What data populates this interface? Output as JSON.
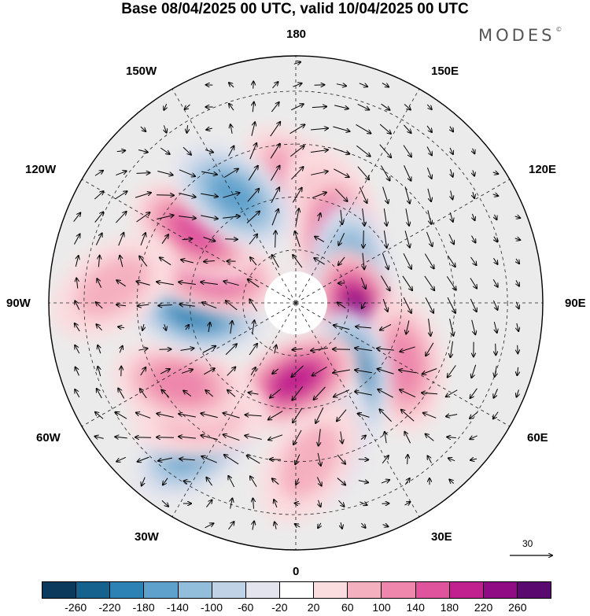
{
  "title": "Base 08/04/2025 00 UTC, valid 10/04/2025 00 UTC",
  "brand": "MODES",
  "brand_mark": "©",
  "longitude_labels": {
    "top": "180",
    "bottom": "0",
    "left": "90W",
    "right": "90E",
    "nw_top": "150W",
    "nw_side": "120W",
    "ne_top": "150E",
    "ne_side": "120E",
    "sw_side": "60W",
    "sw_bottom": "30W",
    "se_side": "60E",
    "se_bottom": "30E"
  },
  "reference_vector_label": "30",
  "colorbar": {
    "colors": [
      "#0b3a5c",
      "#16628f",
      "#2c82b5",
      "#5ea1cc",
      "#92bddb",
      "#c0d2e6",
      "#e4e4ef",
      "#ffffff",
      "#fbdcdf",
      "#f5b0c0",
      "#ee87ab",
      "#e0549d",
      "#c1218e",
      "#8f0c84",
      "#5a0a6e"
    ],
    "tick_labels": [
      "-260",
      "-220",
      "-180",
      "-140",
      "-100",
      "-60",
      "-20",
      "20",
      "60",
      "100",
      "140",
      "180",
      "220",
      "260"
    ]
  },
  "anomaly_centers": [
    {
      "lon": 180,
      "lat": 57,
      "value": 120
    },
    {
      "lon": 160,
      "lat": 62,
      "value": 80
    },
    {
      "lon": 150,
      "lat": 68,
      "value": 150
    },
    {
      "lon": 120,
      "lat": 72,
      "value": -140
    },
    {
      "lon": 80,
      "lat": 72,
      "value": 250
    },
    {
      "lon": 60,
      "lat": 55,
      "value": 130
    },
    {
      "lon": 35,
      "lat": 64,
      "value": -220
    },
    {
      "lon": 15,
      "lat": 52,
      "value": -80
    },
    {
      "lon": 5,
      "lat": 45,
      "value": 60
    },
    {
      "lon": 0,
      "lat": 68,
      "value": 190
    },
    {
      "lon": -35,
      "lat": 40,
      "value": -140
    },
    {
      "lon": -40,
      "lat": 48,
      "value": 80
    },
    {
      "lon": -55,
      "lat": 50,
      "value": 130
    },
    {
      "lon": -85,
      "lat": 62,
      "value": -190
    },
    {
      "lon": -110,
      "lat": 65,
      "value": 170
    },
    {
      "lon": -125,
      "lat": 55,
      "value": 150
    },
    {
      "lon": -150,
      "lat": 55,
      "value": -170
    },
    {
      "lon": -95,
      "lat": 38,
      "value": 60
    }
  ]
}
